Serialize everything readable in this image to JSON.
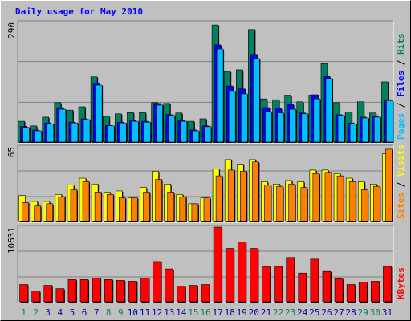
{
  "chart_data": [
    {
      "type": "bar",
      "title": "Daily usage for May 2010",
      "ylim": [
        0,
        290
      ],
      "yticks": [
        290
      ],
      "legend_separator": " / ",
      "series": [
        {
          "name": "Hits",
          "color": "#008060",
          "values": [
            52,
            41,
            62,
            97,
            79,
            87,
            159,
            64,
            70,
            73,
            73,
            97,
            95,
            72,
            52,
            58,
            284,
            172,
            176,
            273,
            106,
            104,
            114,
            99,
            114,
            191,
            97,
            74,
            99,
            72,
            147
          ]
        },
        {
          "name": "Files",
          "color": "#0000ff",
          "values": [
            40,
            31,
            48,
            85,
            50,
            58,
            143,
            42,
            50,
            54,
            52,
            95,
            68,
            54,
            31,
            41,
            236,
            137,
            130,
            213,
            85,
            83,
            93,
            72,
            116,
            160,
            68,
            48,
            62,
            64,
            104
          ]
        },
        {
          "name": "Pages",
          "color": "#00c0ff",
          "values": [
            37,
            29,
            46,
            81,
            48,
            56,
            139,
            41,
            48,
            52,
            50,
            91,
            66,
            52,
            29,
            39,
            226,
            124,
            118,
            203,
            75,
            72,
            81,
            70,
            106,
            155,
            66,
            46,
            60,
            62,
            102
          ]
        }
      ]
    },
    {
      "type": "bar",
      "ylim": [
        0,
        65
      ],
      "yticks": [
        65
      ],
      "legend_separator": " / ",
      "series": [
        {
          "name": "Visits",
          "color": "#ffff00",
          "values": [
            23,
            18,
            18,
            24,
            32,
            38,
            33,
            26,
            27,
            21,
            30,
            44,
            33,
            24,
            16,
            21,
            46,
            54,
            50,
            54,
            35,
            33,
            36,
            35,
            45,
            45,
            42,
            38,
            35,
            33,
            59
          ]
        },
        {
          "name": "Sites",
          "color": "#ff8000",
          "values": [
            17,
            14,
            16,
            22,
            28,
            35,
            26,
            24,
            21,
            21,
            26,
            37,
            26,
            22,
            16,
            21,
            40,
            45,
            44,
            52,
            32,
            31,
            33,
            30,
            42,
            43,
            40,
            35,
            28,
            31,
            63
          ]
        }
      ]
    },
    {
      "type": "bar",
      "ylim": [
        0,
        10631
      ],
      "yticks": [
        10631
      ],
      "categories": [
        "1",
        "2",
        "3",
        "4",
        "5",
        "6",
        "7",
        "8",
        "9",
        "10",
        "11",
        "12",
        "13",
        "14",
        "15",
        "16",
        "17",
        "18",
        "19",
        "20",
        "21",
        "22",
        "23",
        "24",
        "25",
        "26",
        "27",
        "28",
        "29",
        "30",
        "31"
      ],
      "label_colors": [
        "#008060",
        "#008060",
        "#0000a0",
        "#0000a0",
        "#0000a0",
        "#0000a0",
        "#0000a0",
        "#008060",
        "#008060",
        "#0000a0",
        "#0000a0",
        "#0000a0",
        "#0000a0",
        "#0000a0",
        "#008060",
        "#008060",
        "#0000a0",
        "#0000a0",
        "#0000a0",
        "#0000a0",
        "#0000a0",
        "#008060",
        "#008060",
        "#0000a0",
        "#0000a0",
        "#0000a0",
        "#0000a0",
        "#0000a0",
        "#008060",
        "#008060",
        "#0000a0"
      ],
      "series": [
        {
          "name": "KBytes",
          "color": "#ff0000",
          "values": [
            2542,
            1618,
            2427,
            1964,
            3236,
            3236,
            3467,
            3236,
            3120,
            3004,
            3467,
            5778,
            4738,
            2311,
            2427,
            2542,
            10631,
            7627,
            8551,
            7627,
            5085,
            5085,
            6356,
            4160,
            6125,
            4391,
            3351,
            2542,
            2889,
            3004,
            5085
          ]
        }
      ]
    }
  ]
}
